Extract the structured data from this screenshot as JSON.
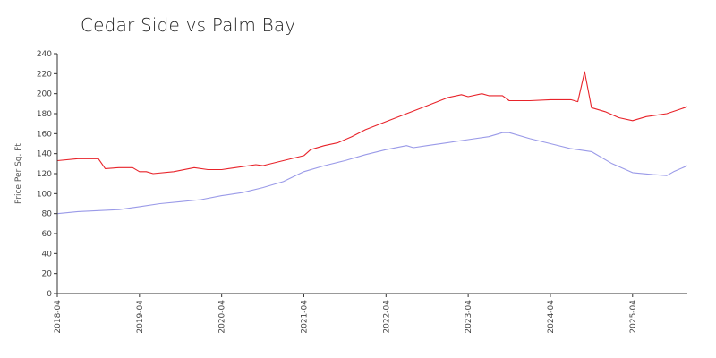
{
  "chart_data": {
    "type": "line",
    "title": "Cedar Side vs Palm Bay",
    "xlabel": "",
    "ylabel": "Price Per Sq. Ft",
    "ylim": [
      0,
      240
    ],
    "yticks": [
      0,
      20,
      40,
      60,
      80,
      100,
      120,
      140,
      160,
      180,
      200,
      220,
      240
    ],
    "xlim": [
      "2018-04",
      "2025-12"
    ],
    "xticks": [
      "2018-04",
      "2019-04",
      "2020-04",
      "2021-04",
      "2022-04",
      "2023-04",
      "2024-04",
      "2025-04"
    ],
    "legend": "none",
    "grid": false,
    "colors": {
      "series_1": "#e8232a",
      "series_2": "#9a9ae8"
    },
    "series": [
      {
        "color": "#e8232a",
        "points": [
          [
            "2018-04",
            133
          ],
          [
            "2018-07",
            135
          ],
          [
            "2018-10",
            135
          ],
          [
            "2018-11",
            125
          ],
          [
            "2019-01",
            126
          ],
          [
            "2019-03",
            126
          ],
          [
            "2019-04",
            122
          ],
          [
            "2019-05",
            122
          ],
          [
            "2019-06",
            120
          ],
          [
            "2019-09",
            122
          ],
          [
            "2019-12",
            126
          ],
          [
            "2020-02",
            124
          ],
          [
            "2020-04",
            124
          ],
          [
            "2020-06",
            126
          ],
          [
            "2020-09",
            129
          ],
          [
            "2020-10",
            128
          ],
          [
            "2021-01",
            133
          ],
          [
            "2021-04",
            138
          ],
          [
            "2021-05",
            144
          ],
          [
            "2021-07",
            148
          ],
          [
            "2021-09",
            151
          ],
          [
            "2021-11",
            157
          ],
          [
            "2022-01",
            164
          ],
          [
            "2022-04",
            172
          ],
          [
            "2022-07",
            180
          ],
          [
            "2022-10",
            188
          ],
          [
            "2023-01",
            196
          ],
          [
            "2023-03",
            199
          ],
          [
            "2023-04",
            197
          ],
          [
            "2023-06",
            200
          ],
          [
            "2023-07",
            198
          ],
          [
            "2023-09",
            198
          ],
          [
            "2023-10",
            193
          ],
          [
            "2024-01",
            193
          ],
          [
            "2024-04",
            194
          ],
          [
            "2024-07",
            194
          ],
          [
            "2024-08",
            192
          ],
          [
            "2024-09",
            222
          ],
          [
            "2024-10",
            186
          ],
          [
            "2024-12",
            182
          ],
          [
            "2025-02",
            176
          ],
          [
            "2025-04",
            173
          ],
          [
            "2025-06",
            177
          ],
          [
            "2025-09",
            180
          ],
          [
            "2025-12",
            187
          ]
        ]
      },
      {
        "color": "#9a9ae8",
        "points": [
          [
            "2018-04",
            80
          ],
          [
            "2018-07",
            82
          ],
          [
            "2018-10",
            83
          ],
          [
            "2019-01",
            84
          ],
          [
            "2019-04",
            87
          ],
          [
            "2019-07",
            90
          ],
          [
            "2019-10",
            92
          ],
          [
            "2020-01",
            94
          ],
          [
            "2020-04",
            98
          ],
          [
            "2020-07",
            101
          ],
          [
            "2020-10",
            106
          ],
          [
            "2021-01",
            112
          ],
          [
            "2021-04",
            122
          ],
          [
            "2021-07",
            128
          ],
          [
            "2021-10",
            133
          ],
          [
            "2022-01",
            139
          ],
          [
            "2022-04",
            144
          ],
          [
            "2022-07",
            148
          ],
          [
            "2022-08",
            146
          ],
          [
            "2022-10",
            148
          ],
          [
            "2023-01",
            151
          ],
          [
            "2023-04",
            154
          ],
          [
            "2023-07",
            157
          ],
          [
            "2023-09",
            161
          ],
          [
            "2023-10",
            161
          ],
          [
            "2024-01",
            155
          ],
          [
            "2024-04",
            150
          ],
          [
            "2024-07",
            145
          ],
          [
            "2024-10",
            142
          ],
          [
            "2025-01",
            130
          ],
          [
            "2025-04",
            121
          ],
          [
            "2025-07",
            119
          ],
          [
            "2025-09",
            118
          ],
          [
            "2025-10",
            122
          ],
          [
            "2025-12",
            128
          ]
        ]
      }
    ]
  }
}
